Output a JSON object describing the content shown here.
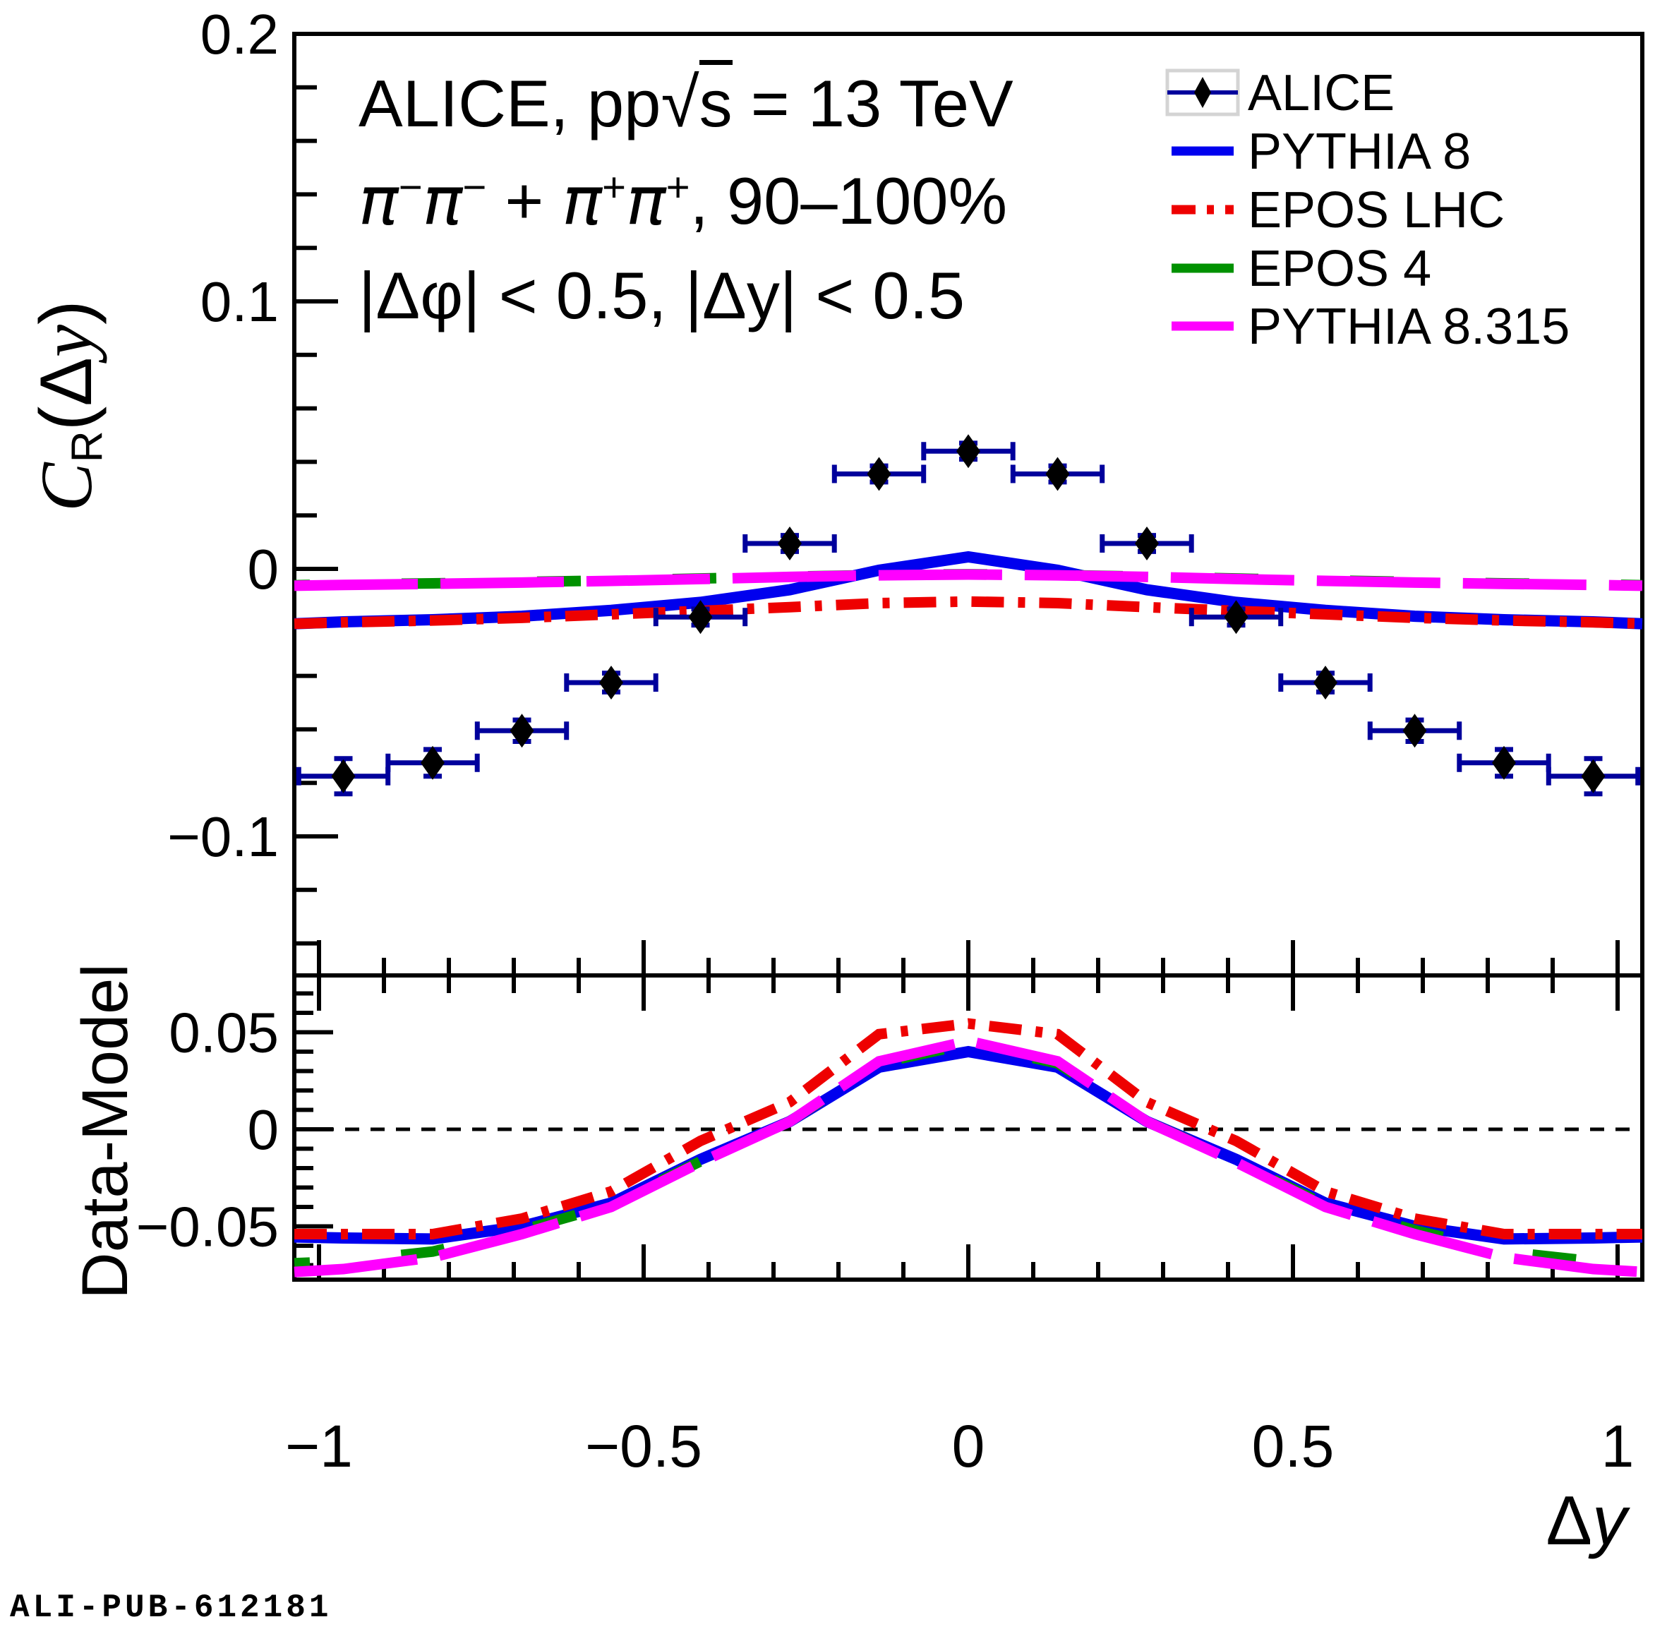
{
  "colors": {
    "frame": "#000000",
    "alice_marker": "#000000",
    "alice_errorbar": "#00009c",
    "pythia8": "#0000ee",
    "epos_lhc": "#ee0000",
    "epos4": "#009100",
    "pythia8315": "#ff00ff",
    "zero_line": "#000000",
    "watermark": "#b5b5b5",
    "legend_marker_box": "#d4d4d4"
  },
  "titles": {
    "line1_pre": "ALICE, pp",
    "line1_sqrt_arg": "s",
    "line1_post": " = 13 TeV",
    "line2_parts": [
      {
        "text": "π",
        "sup": "−"
      },
      {
        "text": "π",
        "sup": "−"
      },
      {
        "text": " + ",
        "sup": ""
      },
      {
        "text": "π",
        "sup": "+"
      },
      {
        "text": "π",
        "sup": "+"
      },
      {
        "text": ", 90–100%",
        "sup": ""
      }
    ],
    "line3": "|Δφ| < 0.5, |Δy| < 0.5"
  },
  "legend": {
    "entries": [
      {
        "label": "ALICE",
        "type": "data-marker"
      },
      {
        "label": "PYTHIA 8",
        "type": "line",
        "color": "#0000ee",
        "dash": ""
      },
      {
        "label": "EPOS LHC",
        "type": "line",
        "color": "#ee0000",
        "dash": "34 16 10 16"
      },
      {
        "label": "EPOS 4",
        "type": "line",
        "color": "#009100",
        "dash": ""
      },
      {
        "label": "PYTHIA 8.315",
        "type": "line",
        "color": "#ff00ff",
        "dash": ""
      }
    ]
  },
  "axis_labels": {
    "y_top_main": "C",
    "y_top_sub": "R",
    "y_top_rest_open": "(Δ",
    "y_top_rest_y": "y",
    "y_top_rest_close": ")",
    "y_bottom": "Data-Model",
    "x_delta": "Δ",
    "x_y": "y"
  },
  "watermark": "ALI-PUB-612181",
  "chart_data": {
    "type": "line",
    "x": {
      "label": "Δy",
      "lim": [
        -1.038,
        1.038
      ],
      "major_ticks": [
        -1,
        -0.5,
        0,
        0.5,
        1
      ],
      "major_tick_labels": [
        "−1",
        "−0.5",
        "0",
        "0.5",
        "1"
      ],
      "minor_tick_step": 0.1
    },
    "panels": [
      {
        "id": "top",
        "ylabel": "C_R(dy)",
        "ylim": [
          -0.152,
          0.2
        ],
        "major_ticks": [
          0.2,
          0.1,
          0,
          -0.1
        ],
        "major_tick_labels": [
          "0.2",
          "0.1",
          "0",
          "−0.1"
        ],
        "minor_tick_step": 0.02,
        "grid": false
      },
      {
        "id": "bottom",
        "ylabel": "Data-Model",
        "ylim": [
          -0.0775,
          0.0793
        ],
        "major_ticks": [
          0.05,
          0,
          -0.05
        ],
        "major_tick_labels": [
          "0.05",
          "0",
          "−0.05"
        ],
        "minor_tick_step": 0.01,
        "zero_line": true,
        "grid": false
      }
    ],
    "alice_points": {
      "name": "ALICE",
      "x": [
        -0.9625,
        -0.825,
        -0.6875,
        -0.55,
        -0.4125,
        -0.275,
        -0.1375,
        0,
        0.1375,
        0.275,
        0.4125,
        0.55,
        0.6875,
        0.825,
        0.9625
      ],
      "y": [
        -0.0775,
        -0.0725,
        -0.0605,
        -0.0425,
        -0.018,
        0.0095,
        0.0355,
        0.044,
        0.0355,
        0.0095,
        -0.018,
        -0.0425,
        -0.0605,
        -0.0725,
        -0.0775
      ],
      "xerr": 0.0687,
      "yerr": [
        0.0066,
        0.005,
        0.004,
        0.0035,
        0.003,
        0.003,
        0.003,
        0.003,
        0.003,
        0.003,
        0.003,
        0.0035,
        0.004,
        0.005,
        0.0066
      ]
    },
    "curve_x": [
      -1.038,
      -0.9625,
      -0.825,
      -0.6875,
      -0.55,
      -0.4125,
      -0.275,
      -0.1375,
      0,
      0.1375,
      0.275,
      0.4125,
      0.55,
      0.6875,
      0.825,
      0.9625,
      1.038
    ],
    "series_top": [
      {
        "name": "PYTHIA 8",
        "values": [
          -0.0205,
          -0.0198,
          -0.019,
          -0.0177,
          -0.0155,
          -0.0125,
          -0.0078,
          -0.0005,
          0.0045,
          -0.0005,
          -0.0078,
          -0.0125,
          -0.0155,
          -0.0177,
          -0.019,
          -0.0198,
          -0.0205
        ]
      },
      {
        "name": "EPOS LHC",
        "values": [
          -0.0205,
          -0.02,
          -0.0193,
          -0.0183,
          -0.017,
          -0.0157,
          -0.0143,
          -0.0128,
          -0.0122,
          -0.0128,
          -0.0143,
          -0.0157,
          -0.017,
          -0.0183,
          -0.0193,
          -0.02,
          -0.0205
        ]
      },
      {
        "name": "EPOS 4",
        "values": [
          -0.0061,
          -0.0058,
          -0.0054,
          -0.0049,
          -0.0043,
          -0.0036,
          -0.0029,
          -0.0023,
          -0.002,
          -0.0023,
          -0.0029,
          -0.0036,
          -0.0043,
          -0.0049,
          -0.0054,
          -0.0058,
          -0.0061
        ]
      },
      {
        "name": "PYTHIA 8.315",
        "values": [
          -0.0063,
          -0.006,
          -0.0056,
          -0.0051,
          -0.0045,
          -0.0038,
          -0.003,
          -0.0024,
          -0.0021,
          -0.0024,
          -0.003,
          -0.0038,
          -0.0045,
          -0.0051,
          -0.0056,
          -0.006,
          -0.0063
        ]
      }
    ],
    "series_bottom": [
      {
        "name": "PYTHIA 8",
        "values": [
          -0.0555,
          -0.056,
          -0.0565,
          -0.05,
          -0.038,
          -0.0155,
          0.004,
          0.032,
          0.04,
          0.032,
          0.004,
          -0.0155,
          -0.038,
          -0.05,
          -0.0565,
          -0.056,
          -0.0555
        ]
      },
      {
        "name": "EPOS LHC",
        "values": [
          -0.054,
          -0.054,
          -0.054,
          -0.046,
          -0.032,
          -0.006,
          0.014,
          0.049,
          0.0545,
          0.049,
          0.014,
          -0.006,
          -0.032,
          -0.046,
          -0.054,
          -0.054,
          -0.054
        ]
      },
      {
        "name": "EPOS 4",
        "values": [
          -0.069,
          -0.068,
          -0.063,
          -0.052,
          -0.039,
          -0.0165,
          0.004,
          0.034,
          0.044,
          0.034,
          0.004,
          -0.0165,
          -0.039,
          -0.052,
          -0.063,
          -0.068,
          -0.069
        ]
      },
      {
        "name": "PYTHIA 8.315",
        "values": [
          -0.0735,
          -0.072,
          -0.066,
          -0.054,
          -0.04,
          -0.017,
          0.004,
          0.035,
          0.0455,
          0.035,
          0.004,
          -0.017,
          -0.04,
          -0.054,
          -0.066,
          -0.072,
          -0.0735
        ]
      }
    ]
  }
}
